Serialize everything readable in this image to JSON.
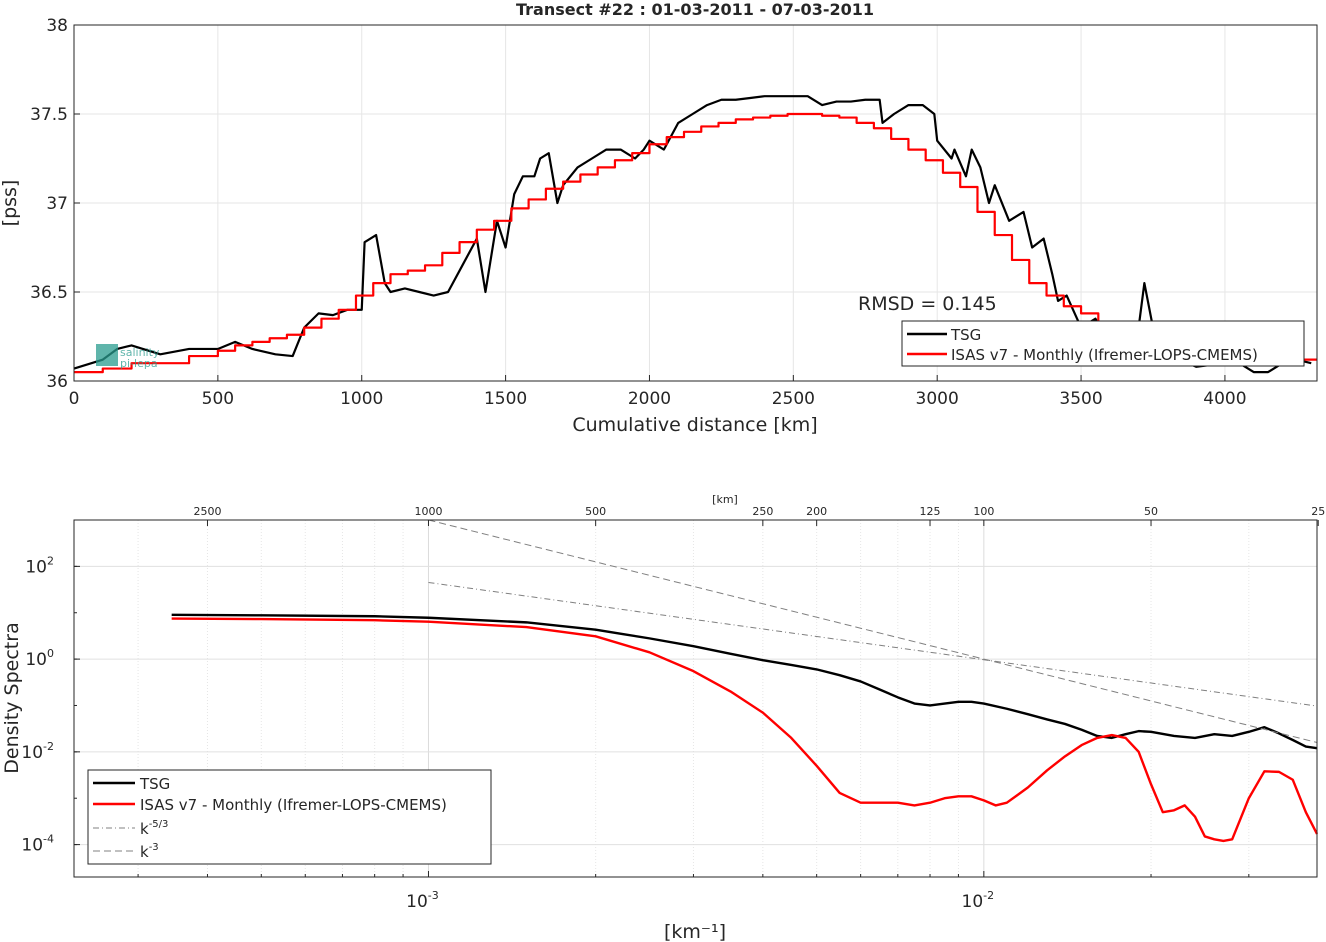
{
  "chart_data": [
    {
      "type": "line",
      "title": "Transect #22 : 01-03-2011 - 07-03-2011",
      "xlabel": "Cumulative distance [km]",
      "ylabel": "[pss]",
      "xlim": [
        0,
        4320
      ],
      "ylim": [
        36,
        38
      ],
      "xticks": [
        0,
        500,
        1000,
        1500,
        2000,
        2500,
        3000,
        3500,
        4000
      ],
      "xtick_labels": [
        "0",
        "500",
        "1000",
        "1500",
        "2000",
        "2500",
        "3000",
        "3500",
        "4000"
      ],
      "yticks": [
        36,
        36.5,
        37,
        37.5,
        38
      ],
      "ytick_labels": [
        "36",
        "36.5",
        "37",
        "37.5",
        "38"
      ],
      "grid": true,
      "annotation": "RMSD = 0.145",
      "legend_position": "bottom-right",
      "series": [
        {
          "name": "TSG",
          "color": "#000000",
          "x": [
            0,
            100,
            150,
            200,
            300,
            400,
            500,
            560,
            620,
            700,
            760,
            800,
            850,
            900,
            950,
            1000,
            1010,
            1050,
            1080,
            1100,
            1150,
            1200,
            1250,
            1300,
            1350,
            1400,
            1430,
            1470,
            1500,
            1530,
            1560,
            1600,
            1620,
            1650,
            1680,
            1700,
            1750,
            1800,
            1850,
            1900,
            1950,
            1980,
            2000,
            2050,
            2100,
            2150,
            2200,
            2250,
            2300,
            2350,
            2400,
            2450,
            2500,
            2550,
            2600,
            2650,
            2700,
            2750,
            2800,
            2810,
            2850,
            2900,
            2950,
            2990,
            3000,
            3050,
            3060,
            3100,
            3120,
            3150,
            3180,
            3200,
            3250,
            3300,
            3330,
            3370,
            3400,
            3420,
            3450,
            3500,
            3550,
            3600,
            3650,
            3700,
            3720,
            3750,
            3800,
            3900,
            4000,
            4050,
            4100,
            4150,
            4200,
            4250,
            4300
          ],
          "y": [
            36.07,
            36.12,
            36.18,
            36.2,
            36.15,
            36.18,
            36.18,
            36.22,
            36.18,
            36.15,
            36.14,
            36.3,
            36.38,
            36.37,
            36.4,
            36.4,
            36.78,
            36.82,
            36.55,
            36.5,
            36.52,
            36.5,
            36.48,
            36.5,
            36.65,
            36.8,
            36.5,
            36.9,
            36.75,
            37.05,
            37.15,
            37.15,
            37.25,
            37.28,
            37.0,
            37.1,
            37.2,
            37.25,
            37.3,
            37.3,
            37.25,
            37.3,
            37.35,
            37.3,
            37.45,
            37.5,
            37.55,
            37.58,
            37.58,
            37.59,
            37.6,
            37.6,
            37.6,
            37.6,
            37.55,
            37.57,
            37.57,
            37.58,
            37.58,
            37.45,
            37.5,
            37.55,
            37.55,
            37.5,
            37.35,
            37.25,
            37.3,
            37.15,
            37.3,
            37.2,
            37.0,
            37.1,
            36.9,
            36.95,
            36.75,
            36.8,
            36.6,
            36.45,
            36.48,
            36.3,
            36.35,
            36.22,
            36.15,
            36.3,
            36.55,
            36.3,
            36.15,
            36.08,
            36.1,
            36.1,
            36.05,
            36.05,
            36.1,
            36.12,
            36.1
          ]
        },
        {
          "name": "ISAS v7 - Monthly (Ifremer-LOPS-CMEMS)",
          "color": "#ff0000",
          "step": true,
          "x": [
            0,
            100,
            200,
            300,
            400,
            500,
            560,
            620,
            680,
            740,
            800,
            860,
            920,
            980,
            1040,
            1100,
            1160,
            1220,
            1280,
            1340,
            1400,
            1460,
            1520,
            1580,
            1640,
            1700,
            1760,
            1820,
            1880,
            1940,
            2000,
            2060,
            2120,
            2180,
            2240,
            2300,
            2360,
            2420,
            2480,
            2540,
            2600,
            2660,
            2720,
            2780,
            2840,
            2900,
            2960,
            3020,
            3080,
            3140,
            3200,
            3260,
            3320,
            3380,
            3440,
            3500,
            3560,
            3620,
            3680,
            3740,
            3800,
            3860,
            3920,
            3980,
            4040,
            4100,
            4160,
            4220,
            4280
          ],
          "y": [
            36.05,
            36.07,
            36.1,
            36.1,
            36.14,
            36.17,
            36.2,
            36.22,
            36.24,
            36.26,
            36.3,
            36.35,
            36.4,
            36.48,
            36.55,
            36.6,
            36.62,
            36.65,
            36.72,
            36.78,
            36.85,
            36.9,
            36.97,
            37.02,
            37.08,
            37.12,
            37.16,
            37.2,
            37.24,
            37.28,
            37.33,
            37.37,
            37.4,
            37.43,
            37.45,
            37.47,
            37.48,
            37.49,
            37.5,
            37.5,
            37.49,
            37.48,
            37.45,
            37.42,
            37.36,
            37.3,
            37.24,
            37.17,
            37.09,
            36.95,
            36.82,
            36.68,
            36.55,
            36.48,
            36.42,
            36.38,
            36.33,
            36.28,
            36.24,
            36.2,
            36.18,
            36.16,
            36.15,
            36.14,
            36.13,
            36.13,
            36.12,
            36.12,
            36.12
          ]
        }
      ]
    },
    {
      "type": "line",
      "xlabel": "[km⁻¹]",
      "ylabel": "Density Spectra",
      "xscale": "log",
      "yscale": "log",
      "xlim": [
        0.00023,
        0.0398
      ],
      "ylim": [
        2e-05,
        1000
      ],
      "xticks_major": [
        0.001,
        0.01
      ],
      "xtick_labels": [
        "10",
        "10"
      ],
      "xtick_exponents": [
        "-3",
        "-2"
      ],
      "yticks": [
        0.0001,
        0.01,
        1,
        100
      ],
      "ytick_labels": [
        "10",
        "10",
        "10",
        "10"
      ],
      "ytick_exponents": [
        "-4",
        "-2",
        "0",
        "2"
      ],
      "top_axis_label": "[km]",
      "top_axis_ticks": [
        2500,
        1000,
        500,
        250,
        200,
        125,
        100,
        50,
        25
      ],
      "top_axis_tick_labels": [
        "2500",
        "1000",
        "500",
        "250",
        "200",
        "125",
        "100",
        "50",
        "25"
      ],
      "grid": true,
      "legend_position": "bottom-left",
      "series": [
        {
          "name": "TSG",
          "color": "#000000",
          "x": [
            0.0003448,
            0.0005,
            0.0008,
            0.001,
            0.0015,
            0.002,
            0.0025,
            0.003,
            0.0035,
            0.004,
            0.0045,
            0.005,
            0.0055,
            0.006,
            0.0065,
            0.007,
            0.0075,
            0.008,
            0.0085,
            0.009,
            0.0095,
            0.01,
            0.011,
            0.012,
            0.013,
            0.014,
            0.015,
            0.016,
            0.017,
            0.018,
            0.019,
            0.02,
            0.022,
            0.024,
            0.026,
            0.028,
            0.03,
            0.032,
            0.034,
            0.036,
            0.038,
            0.0398
          ],
          "y": [
            9,
            8.8,
            8.4,
            7.8,
            6.2,
            4.3,
            2.8,
            1.9,
            1.3,
            0.95,
            0.75,
            0.6,
            0.45,
            0.33,
            0.22,
            0.15,
            0.11,
            0.1,
            0.11,
            0.12,
            0.12,
            0.11,
            0.085,
            0.065,
            0.05,
            0.04,
            0.03,
            0.022,
            0.02,
            0.024,
            0.028,
            0.027,
            0.022,
            0.02,
            0.024,
            0.022,
            0.027,
            0.034,
            0.025,
            0.018,
            0.013,
            0.012
          ]
        },
        {
          "name": "ISAS v7 - Monthly (Ifremer-LOPS-CMEMS)",
          "color": "#ff0000",
          "x": [
            0.0003448,
            0.0005,
            0.0008,
            0.001,
            0.0015,
            0.002,
            0.0025,
            0.003,
            0.0035,
            0.004,
            0.0045,
            0.005,
            0.0055,
            0.006,
            0.0065,
            0.007,
            0.0075,
            0.008,
            0.0085,
            0.009,
            0.0095,
            0.01,
            0.0105,
            0.011,
            0.012,
            0.013,
            0.014,
            0.015,
            0.016,
            0.017,
            0.018,
            0.019,
            0.02,
            0.021,
            0.022,
            0.023,
            0.024,
            0.025,
            0.026,
            0.027,
            0.028,
            0.03,
            0.032,
            0.034,
            0.036,
            0.038,
            0.0398
          ],
          "y": [
            7.5,
            7.3,
            6.9,
            6.4,
            4.9,
            3.1,
            1.4,
            0.55,
            0.2,
            0.07,
            0.02,
            0.005,
            0.0013,
            0.0008,
            0.0008,
            0.0008,
            0.0007,
            0.0008,
            0.001,
            0.0011,
            0.0011,
            0.0009,
            0.0007,
            0.0008,
            0.0017,
            0.004,
            0.008,
            0.014,
            0.02,
            0.023,
            0.02,
            0.01,
            0.002,
            0.0005,
            0.00055,
            0.0007,
            0.0004,
            0.00015,
            0.00013,
            0.00012,
            0.00013,
            0.001,
            0.0038,
            0.0037,
            0.0025,
            0.0005,
            0.00017
          ]
        },
        {
          "name": "k-5/3",
          "color": "#808080",
          "dash": "dashdot",
          "x": [
            0.001,
            0.0398
          ],
          "y": [
            45,
            0.097
          ]
        },
        {
          "name": "k-3",
          "color": "#808080",
          "dash": "dashed",
          "x": [
            0.001,
            0.0398
          ],
          "y": [
            1000,
            0.0159
          ]
        }
      ]
    }
  ]
}
